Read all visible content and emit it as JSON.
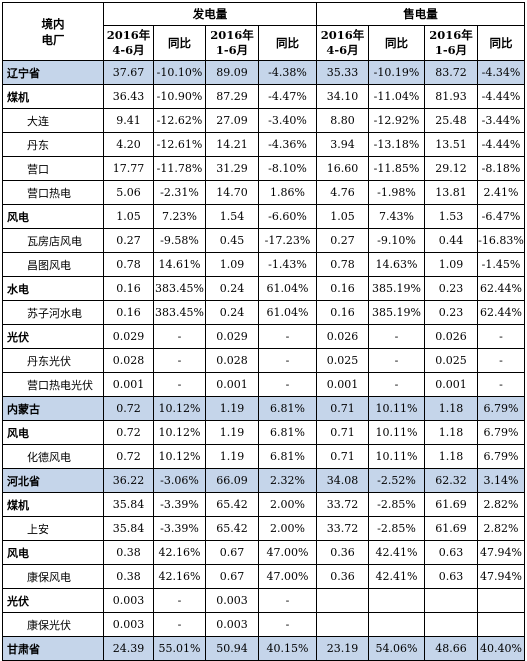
{
  "header": {
    "corner_line1": "境内",
    "corner_line2": "电厂",
    "group_generation": "发电量",
    "group_sales": "售电量",
    "col_q2": [
      "2016年",
      "4-6月"
    ],
    "col_yoy": "同比",
    "col_h1": [
      "2016年",
      "1-6月"
    ]
  },
  "rows": [
    {
      "type": "region",
      "name": "辽宁省",
      "values": [
        "37.67",
        "-10.10%",
        "89.09",
        "-4.38%",
        "35.33",
        "-10.19%",
        "83.72",
        "-4.34%"
      ]
    },
    {
      "type": "category",
      "name": "煤机",
      "values": [
        "36.43",
        "-10.90%",
        "87.29",
        "-4.47%",
        "34.10",
        "-11.04%",
        "81.93",
        "-4.44%"
      ]
    },
    {
      "type": "plant",
      "name": "大连",
      "values": [
        "9.41",
        "-12.62%",
        "27.09",
        "-3.40%",
        "8.80",
        "-12.92%",
        "25.48",
        "-3.44%"
      ]
    },
    {
      "type": "plant",
      "name": "丹东",
      "values": [
        "4.20",
        "-12.61%",
        "14.21",
        "-4.36%",
        "3.94",
        "-13.18%",
        "13.51",
        "-4.44%"
      ]
    },
    {
      "type": "plant",
      "name": "营口",
      "values": [
        "17.77",
        "-11.78%",
        "31.29",
        "-8.10%",
        "16.60",
        "-11.85%",
        "29.12",
        "-8.18%"
      ]
    },
    {
      "type": "plant",
      "name": "营口热电",
      "values": [
        "5.06",
        "-2.31%",
        "14.70",
        "1.86%",
        "4.76",
        "-1.98%",
        "13.81",
        "2.41%"
      ]
    },
    {
      "type": "category",
      "name": "风电",
      "values": [
        "1.05",
        "7.23%",
        "1.54",
        "-6.60%",
        "1.05",
        "7.43%",
        "1.53",
        "-6.47%"
      ]
    },
    {
      "type": "plant",
      "name": "瓦房店风电",
      "values": [
        "0.27",
        "-9.58%",
        "0.45",
        "-17.23%",
        "0.27",
        "-9.10%",
        "0.44",
        "-16.83%"
      ]
    },
    {
      "type": "plant",
      "name": "昌图风电",
      "values": [
        "0.78",
        "14.61%",
        "1.09",
        "-1.43%",
        "0.78",
        "14.63%",
        "1.09",
        "-1.45%"
      ]
    },
    {
      "type": "category",
      "name": "水电",
      "values": [
        "0.16",
        "383.45%",
        "0.24",
        "61.04%",
        "0.16",
        "385.19%",
        "0.23",
        "62.44%"
      ]
    },
    {
      "type": "plant",
      "name": "苏子河水电",
      "values": [
        "0.16",
        "383.45%",
        "0.24",
        "61.04%",
        "0.16",
        "385.19%",
        "0.23",
        "62.44%"
      ]
    },
    {
      "type": "category",
      "name": "光伏",
      "values": [
        "0.029",
        "-",
        "0.029",
        "-",
        "0.026",
        "-",
        "0.026",
        "-"
      ]
    },
    {
      "type": "plant",
      "name": "丹东光伏",
      "values": [
        "0.028",
        "-",
        "0.028",
        "-",
        "0.025",
        "-",
        "0.025",
        "-"
      ]
    },
    {
      "type": "plant",
      "name": "营口热电光伏",
      "values": [
        "0.001",
        "-",
        "0.001",
        "-",
        "0.001",
        "-",
        "0.001",
        "-"
      ]
    },
    {
      "type": "region",
      "name": "内蒙古",
      "values": [
        "0.72",
        "10.12%",
        "1.19",
        "6.81%",
        "0.71",
        "10.11%",
        "1.18",
        "6.79%"
      ]
    },
    {
      "type": "category",
      "name": "风电",
      "values": [
        "0.72",
        "10.12%",
        "1.19",
        "6.81%",
        "0.71",
        "10.11%",
        "1.18",
        "6.79%"
      ]
    },
    {
      "type": "plant",
      "name": "化德风电",
      "values": [
        "0.72",
        "10.12%",
        "1.19",
        "6.81%",
        "0.71",
        "10.11%",
        "1.18",
        "6.79%"
      ]
    },
    {
      "type": "region",
      "name": "河北省",
      "values": [
        "36.22",
        "-3.06%",
        "66.09",
        "2.32%",
        "34.08",
        "-2.52%",
        "62.32",
        "3.14%"
      ]
    },
    {
      "type": "category",
      "name": "煤机",
      "values": [
        "35.84",
        "-3.39%",
        "65.42",
        "2.00%",
        "33.72",
        "-2.85%",
        "61.69",
        "2.82%"
      ]
    },
    {
      "type": "plant",
      "name": "上安",
      "values": [
        "35.84",
        "-3.39%",
        "65.42",
        "2.00%",
        "33.72",
        "-2.85%",
        "61.69",
        "2.82%"
      ]
    },
    {
      "type": "category",
      "name": "风电",
      "values": [
        "0.38",
        "42.16%",
        "0.67",
        "47.00%",
        "0.36",
        "42.41%",
        "0.63",
        "47.94%"
      ]
    },
    {
      "type": "plant",
      "name": "康保风电",
      "values": [
        "0.38",
        "42.16%",
        "0.67",
        "47.00%",
        "0.36",
        "42.41%",
        "0.63",
        "47.94%"
      ]
    },
    {
      "type": "category",
      "name": "光伏",
      "values": [
        "0.003",
        "-",
        "0.003",
        "-",
        "",
        "",
        "",
        ""
      ]
    },
    {
      "type": "plant",
      "name": "康保光伏",
      "values": [
        "0.003",
        "-",
        "0.003",
        "-",
        "",
        "",
        "",
        ""
      ]
    },
    {
      "type": "region",
      "name": "甘肃省",
      "values": [
        "24.39",
        "55.01%",
        "50.94",
        "40.15%",
        "23.19",
        "54.06%",
        "48.66",
        "40.40%"
      ]
    }
  ]
}
